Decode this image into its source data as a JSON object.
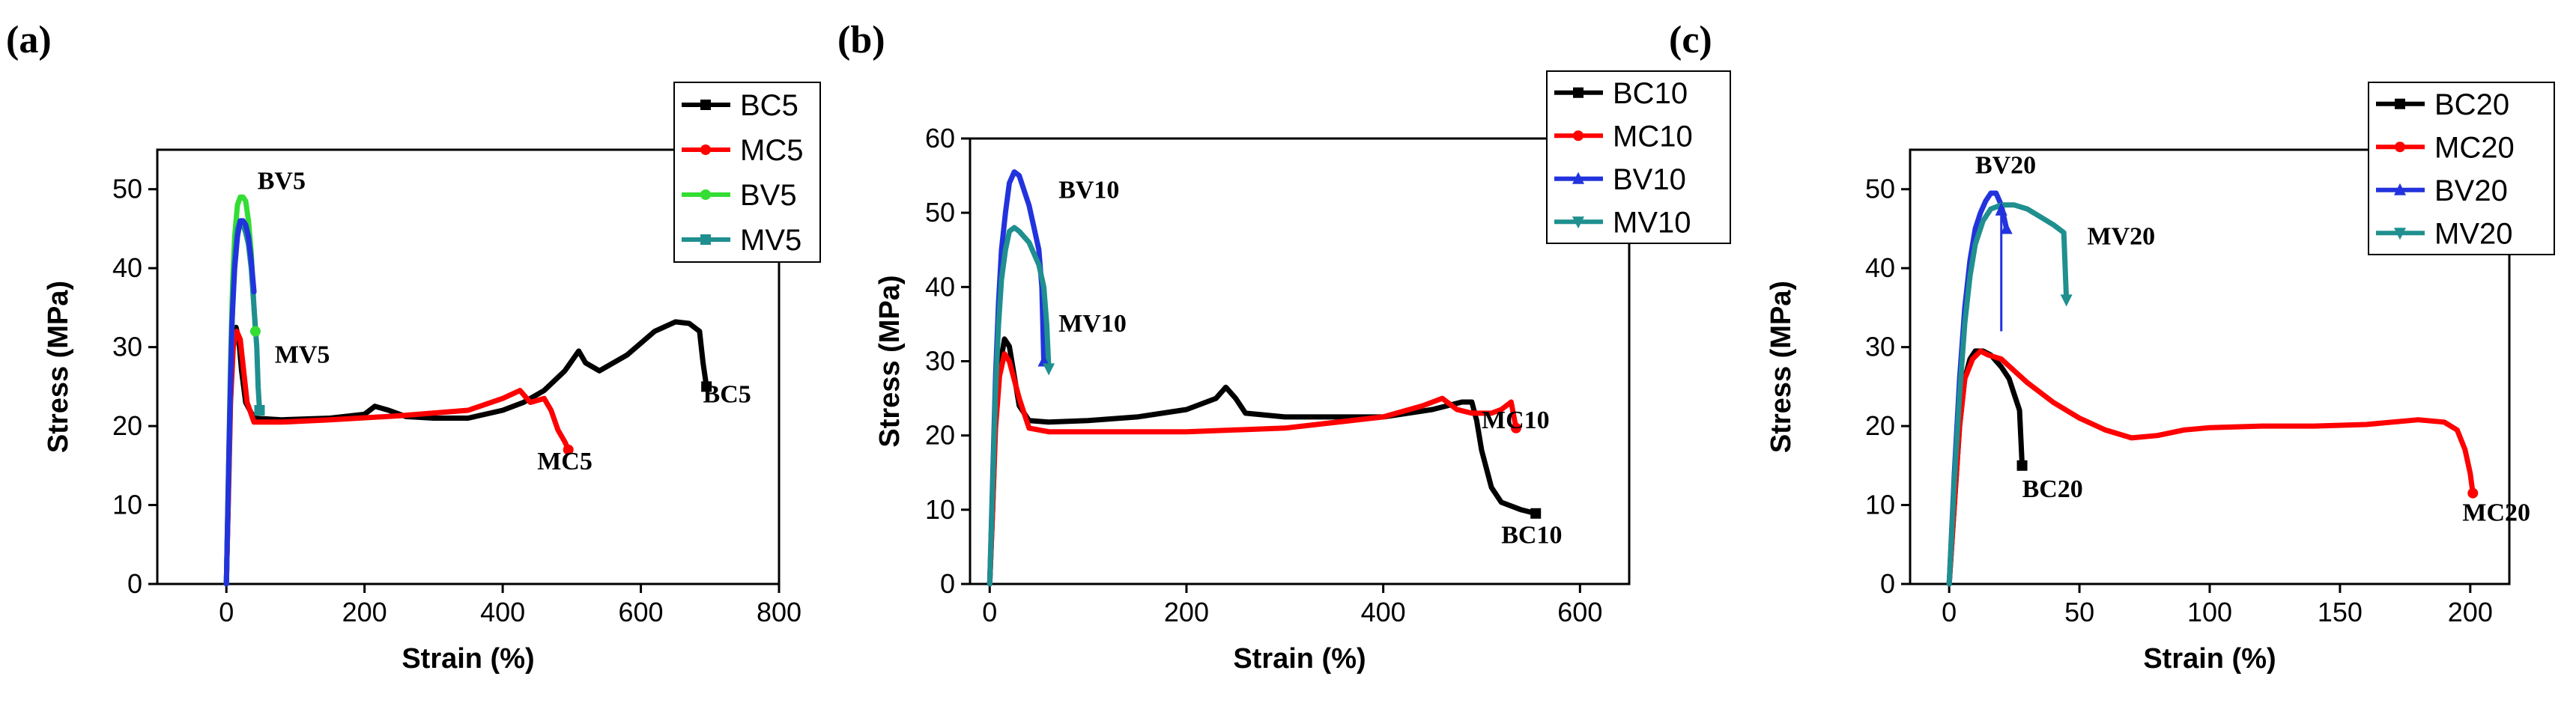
{
  "chart_data": [
    {
      "type": "line",
      "panel_label": "(a)",
      "xlabel": "Strain (%)",
      "ylabel": "Stress (MPa)",
      "xlim": [
        -100,
        800
      ],
      "ylim": [
        0,
        55
      ],
      "xticks": [
        0,
        200,
        400,
        600,
        800
      ],
      "yticks": [
        0,
        10,
        20,
        30,
        40,
        50
      ],
      "legend_position": "top-right",
      "series": [
        {
          "name": "BC5",
          "color": "#000000",
          "marker": "square",
          "x": [
            0,
            3,
            6,
            10,
            14,
            18,
            22,
            28,
            40,
            80,
            150,
            200,
            215,
            235,
            260,
            300,
            350,
            400,
            430,
            460,
            490,
            510,
            520,
            540,
            580,
            620,
            650,
            670,
            685,
            690,
            695
          ],
          "y": [
            0,
            12,
            24,
            31,
            32.5,
            31,
            27,
            23,
            21,
            20.8,
            21,
            21.5,
            22.5,
            22,
            21.2,
            21,
            21,
            22,
            23,
            24.5,
            27,
            29.5,
            28,
            27,
            29,
            32,
            33.2,
            33,
            32,
            28,
            25
          ]
        },
        {
          "name": "MC5",
          "color": "#ff0000",
          "marker": "circle",
          "x": [
            0,
            3,
            6,
            10,
            15,
            20,
            25,
            30,
            40,
            80,
            150,
            250,
            350,
            400,
            425,
            440,
            460,
            470,
            480,
            490,
            495
          ],
          "y": [
            0,
            11,
            23,
            30,
            32,
            31,
            27,
            23,
            20.5,
            20.5,
            20.8,
            21.3,
            22,
            23.5,
            24.5,
            23,
            23.5,
            22,
            19.5,
            18,
            17
          ]
        },
        {
          "name": "BV5",
          "color": "#33dd33",
          "marker": "circle",
          "x": [
            0,
            3,
            6,
            9,
            12,
            16,
            20,
            24,
            28,
            32,
            36,
            40,
            42
          ],
          "y": [
            0,
            14,
            28,
            38,
            44,
            48,
            49,
            49,
            48.5,
            46,
            42,
            35,
            32
          ]
        },
        {
          "name": "MV5",
          "color": "#1f8f8f",
          "marker": "square",
          "x": [
            0,
            3,
            6,
            9,
            12,
            16,
            20,
            24,
            28,
            32,
            36,
            40,
            44,
            46,
            48
          ],
          "y": [
            0,
            13,
            26,
            35,
            41,
            45,
            46,
            45.5,
            44.5,
            43,
            40,
            35,
            30,
            25,
            22
          ]
        }
      ],
      "overlay_series": [
        {
          "name": "BV5",
          "color": "#2233dd",
          "x": [
            0,
            4,
            8,
            12,
            16,
            20,
            24,
            28,
            32,
            36,
            40
          ],
          "y": [
            0,
            18,
            33,
            40,
            44,
            46,
            46,
            45.5,
            44,
            41,
            37
          ]
        }
      ],
      "annotations": [
        {
          "text": "BV5",
          "x": 45,
          "y": 50
        },
        {
          "text": "MV5",
          "x": 70,
          "y": 28
        },
        {
          "text": "BC5",
          "x": 690,
          "y": 23
        },
        {
          "text": "MC5",
          "x": 450,
          "y": 14.5
        }
      ]
    },
    {
      "type": "line",
      "panel_label": "(b)",
      "xlabel": "Strain (%)",
      "ylabel": "Stress (MPa)",
      "xlim": [
        -20,
        650
      ],
      "ylim": [
        0,
        60
      ],
      "xticks": [
        0,
        200,
        400,
        600
      ],
      "yticks": [
        0,
        10,
        20,
        30,
        40,
        50,
        60
      ],
      "legend_position": "top-right",
      "series": [
        {
          "name": "BC10",
          "color": "#000000",
          "marker": "square",
          "x": [
            0,
            3,
            6,
            10,
            15,
            20,
            25,
            30,
            40,
            60,
            100,
            150,
            200,
            230,
            240,
            250,
            260,
            300,
            400,
            450,
            480,
            490,
            495,
            500,
            510,
            520,
            540,
            555
          ],
          "y": [
            0,
            10,
            22,
            29,
            33,
            32,
            28,
            24,
            22,
            21.8,
            22,
            22.5,
            23.5,
            25,
            26.5,
            25,
            23,
            22.5,
            22.5,
            23.5,
            24.5,
            24.5,
            22,
            18,
            13,
            11,
            10,
            9.5
          ]
        },
        {
          "name": "MC10",
          "color": "#ff0000",
          "marker": "circle",
          "x": [
            0,
            3,
            6,
            10,
            15,
            20,
            30,
            40,
            60,
            100,
            200,
            300,
            400,
            440,
            460,
            475,
            490,
            510,
            520,
            530,
            535
          ],
          "y": [
            0,
            10,
            21,
            28,
            31,
            30,
            25,
            21,
            20.5,
            20.5,
            20.5,
            21,
            22.5,
            24,
            25,
            23.5,
            23,
            23,
            23.5,
            24.5,
            21
          ]
        },
        {
          "name": "BV10",
          "color": "#2233dd",
          "marker": "triangle-up",
          "x": [
            0,
            3,
            6,
            9,
            12,
            16,
            20,
            25,
            30,
            35,
            40,
            45,
            50,
            53,
            55
          ],
          "y": [
            0,
            14,
            28,
            38,
            45,
            50,
            54,
            55.5,
            55,
            53,
            51,
            48,
            45,
            40,
            30
          ]
        },
        {
          "name": "MV10",
          "color": "#1f8f8f",
          "marker": "triangle-down",
          "x": [
            0,
            3,
            6,
            9,
            12,
            16,
            20,
            25,
            30,
            40,
            50,
            55,
            58,
            60
          ],
          "y": [
            0,
            13,
            26,
            35,
            41,
            45,
            47.5,
            48,
            47.5,
            46,
            43,
            40,
            35,
            29
          ]
        }
      ],
      "annotations": [
        {
          "text": "BV10",
          "x": 70,
          "y": 52
        },
        {
          "text": "MV10",
          "x": 70,
          "y": 34
        },
        {
          "text": "MC10",
          "x": 500,
          "y": 21
        },
        {
          "text": "BC10",
          "x": 520,
          "y": 5.5
        }
      ]
    },
    {
      "type": "line",
      "panel_label": "(c)",
      "xlabel": "Strain (%)",
      "ylabel": "Stress (MPa)",
      "xlim": [
        -15,
        215
      ],
      "ylim": [
        0,
        55
      ],
      "xticks": [
        0,
        50,
        100,
        150,
        200
      ],
      "yticks": [
        0,
        10,
        20,
        30,
        40,
        50
      ],
      "legend_position": "top-right",
      "series": [
        {
          "name": "BC20",
          "color": "#000000",
          "marker": "square",
          "x": [
            0,
            2,
            4,
            6,
            8,
            10,
            13,
            16,
            20,
            23,
            25,
            27,
            28
          ],
          "y": [
            0,
            10,
            20,
            26,
            28.5,
            29.5,
            29.5,
            29,
            27.5,
            26,
            24,
            22,
            15
          ]
        },
        {
          "name": "MC20",
          "color": "#ff0000",
          "marker": "circle",
          "x": [
            0,
            2,
            4,
            6,
            9,
            12,
            15,
            20,
            25,
            30,
            40,
            50,
            60,
            70,
            80,
            90,
            100,
            120,
            140,
            160,
            180,
            190,
            195,
            198,
            200,
            201
          ],
          "y": [
            0,
            10,
            20,
            26,
            28.5,
            29.5,
            29,
            28.5,
            27,
            25.5,
            23,
            21,
            19.5,
            18.5,
            18.8,
            19.5,
            19.8,
            20,
            20,
            20.2,
            20.8,
            20.5,
            19.5,
            17,
            14,
            11.5
          ]
        },
        {
          "name": "BV20",
          "color": "#2233dd",
          "marker": "triangle-up",
          "x": [
            0,
            2,
            4,
            6,
            8,
            10,
            12,
            14,
            16,
            18,
            20,
            22
          ],
          "y": [
            0,
            14,
            26,
            35,
            41,
            45,
            47,
            48.5,
            49.5,
            49.5,
            48,
            45
          ]
        },
        {
          "name": "MV20",
          "color": "#1f8f8f",
          "marker": "triangle-down",
          "x": [
            0,
            2,
            4,
            6,
            8,
            10,
            13,
            16,
            20,
            25,
            30,
            35,
            40,
            44,
            45
          ],
          "y": [
            0,
            13,
            24,
            33,
            39,
            43,
            46,
            47.5,
            48,
            48,
            47.5,
            46.5,
            45.5,
            44.5,
            36
          ]
        }
      ],
      "arrows": [
        {
          "color": "#2233dd",
          "x": 20,
          "y_from": 48,
          "y_to": 32
        }
      ],
      "annotations": [
        {
          "text": "BV20",
          "x": 10,
          "y": 52
        },
        {
          "text": "MV20",
          "x": 53,
          "y": 43
        },
        {
          "text": "BC20",
          "x": 28,
          "y": 11
        },
        {
          "text": "MC20",
          "x": 197,
          "y": 8
        }
      ]
    }
  ]
}
